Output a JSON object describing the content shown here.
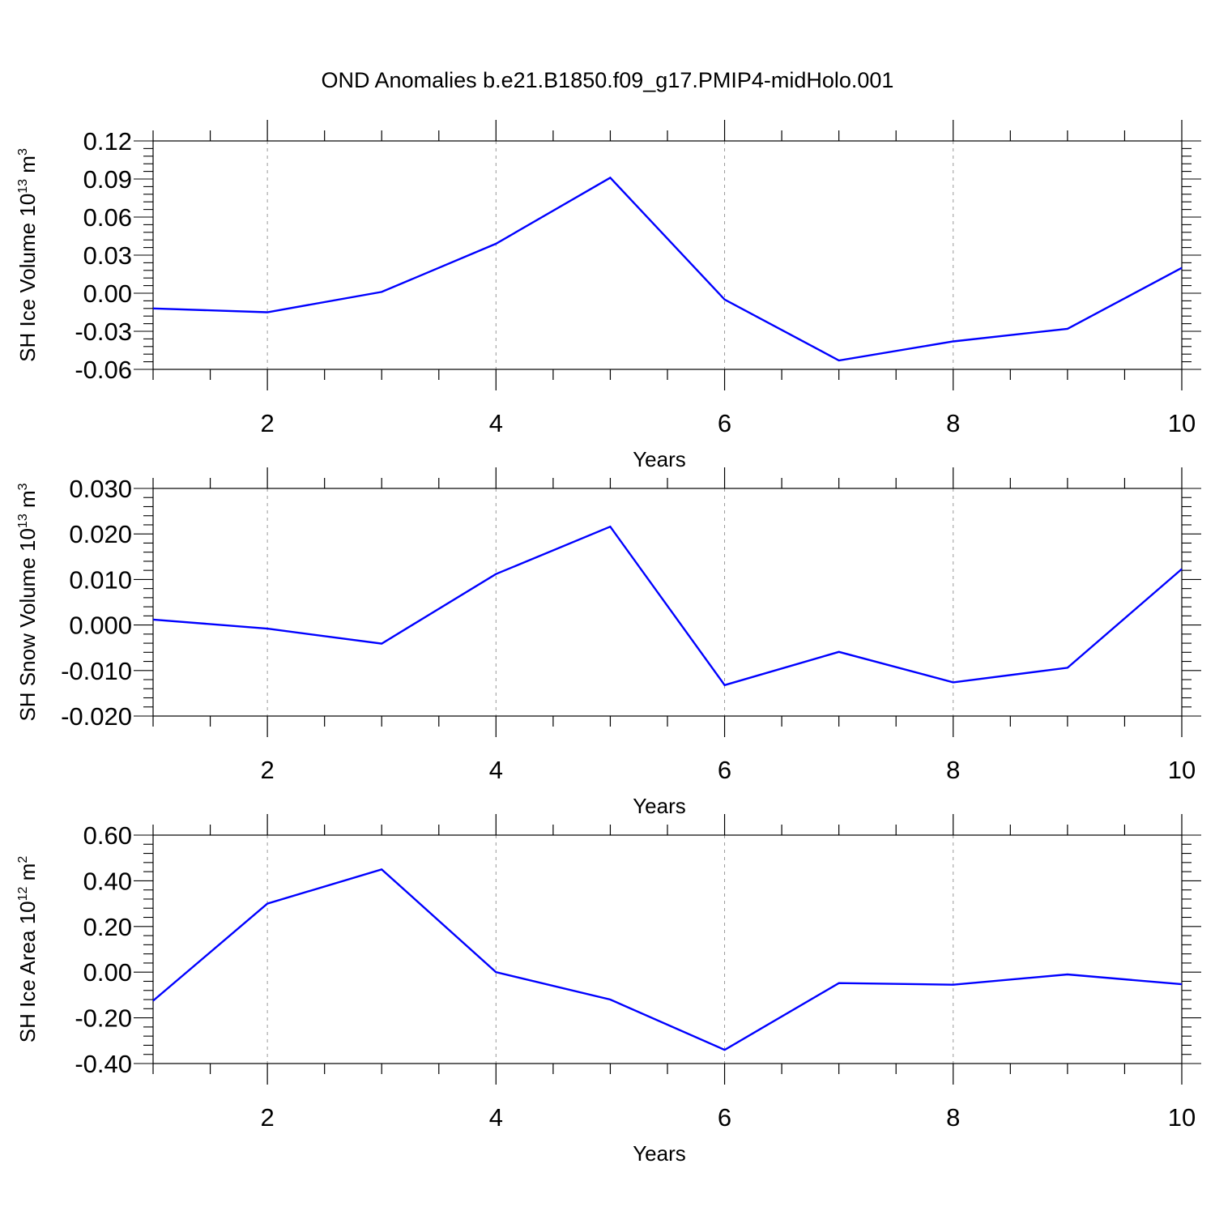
{
  "title": "OND Anomalies b.e21.B1850.f09_g17.PMIP4-midHolo.001",
  "line_color": "#0000ff",
  "chart_data": [
    {
      "type": "line",
      "ylabel_main": "SH Ice Volume 10",
      "ylabel_exp": "13",
      "ylabel_unit": " m",
      "ylabel_unit_exp": "3",
      "xlabel": "Years",
      "xlim": [
        1,
        10
      ],
      "ylim": [
        -0.06,
        0.12
      ],
      "x_ticks": [
        2,
        4,
        6,
        8,
        10
      ],
      "x_tick_labels": [
        "2",
        "4",
        "6",
        "8",
        "10"
      ],
      "y_ticks": [
        -0.06,
        -0.03,
        0.0,
        0.03,
        0.06,
        0.09,
        0.12
      ],
      "y_tick_labels": [
        "-0.06",
        "-0.03",
        "0.00",
        "0.03",
        "0.06",
        "0.09",
        "0.12"
      ],
      "grid": "dashed vertical at major x ticks",
      "x": [
        1,
        2,
        3,
        4,
        5,
        6,
        7,
        8,
        9,
        10
      ],
      "values": [
        -0.012,
        -0.015,
        0.001,
        0.039,
        0.091,
        -0.005,
        -0.053,
        -0.038,
        -0.028,
        0.02
      ]
    },
    {
      "type": "line",
      "ylabel_main": "SH Snow Volume 10",
      "ylabel_exp": "13",
      "ylabel_unit": " m",
      "ylabel_unit_exp": "3",
      "xlabel": "Years",
      "xlim": [
        1,
        10
      ],
      "ylim": [
        -0.02,
        0.03
      ],
      "x_ticks": [
        2,
        4,
        6,
        8,
        10
      ],
      "x_tick_labels": [
        "2",
        "4",
        "6",
        "8",
        "10"
      ],
      "y_ticks": [
        -0.02,
        -0.01,
        0.0,
        0.01,
        0.02,
        0.03
      ],
      "y_tick_labels": [
        "-0.020",
        "-0.010",
        "0.000",
        "0.010",
        "0.020",
        "0.030"
      ],
      "grid": "dashed vertical at major x ticks",
      "x": [
        1,
        2,
        3,
        4,
        5,
        6,
        7,
        8,
        9,
        10
      ],
      "values": [
        0.0012,
        -0.0008,
        -0.0041,
        0.0112,
        0.0216,
        -0.0132,
        -0.0059,
        -0.0126,
        -0.0094,
        0.0123
      ]
    },
    {
      "type": "line",
      "ylabel_main": "SH Ice Area 10",
      "ylabel_exp": "12",
      "ylabel_unit": " m",
      "ylabel_unit_exp": "2",
      "xlabel": "Years",
      "xlim": [
        1,
        10
      ],
      "ylim": [
        -0.4,
        0.6
      ],
      "x_ticks": [
        2,
        4,
        6,
        8,
        10
      ],
      "x_tick_labels": [
        "2",
        "4",
        "6",
        "8",
        "10"
      ],
      "y_ticks": [
        -0.4,
        -0.2,
        0.0,
        0.2,
        0.4,
        0.6
      ],
      "y_tick_labels": [
        "-0.40",
        "-0.20",
        "0.00",
        "0.20",
        "0.40",
        "0.60"
      ],
      "grid": "dashed vertical at major x ticks",
      "x": [
        1,
        2,
        3,
        4,
        5,
        6,
        7,
        8,
        9,
        10
      ],
      "values": [
        -0.125,
        0.3,
        0.45,
        0.0,
        -0.12,
        -0.34,
        -0.048,
        -0.055,
        -0.01,
        -0.053
      ]
    }
  ]
}
